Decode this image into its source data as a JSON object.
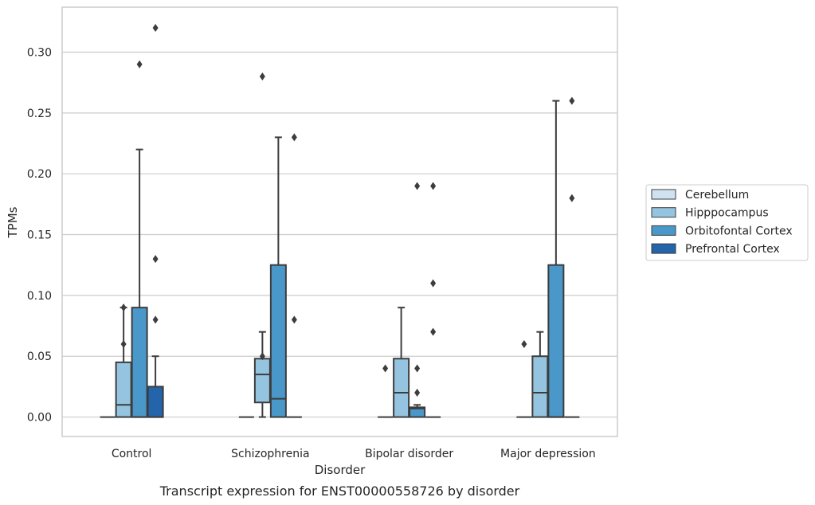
{
  "caption": "Transcript expression for ENST00000558726 by disorder",
  "chart_data": {
    "type": "box",
    "title": "",
    "xlabel": "Disorder",
    "ylabel": "TPMs",
    "ylim": [
      -0.016,
      0.337
    ],
    "yticks": [
      0.0,
      0.05,
      0.1,
      0.15,
      0.2,
      0.25,
      0.3
    ],
    "ytick_labels": [
      "0.00",
      "0.05",
      "0.10",
      "0.15",
      "0.20",
      "0.25",
      "0.30"
    ],
    "grid": "horizontal",
    "legend_position": "right",
    "categories": [
      "Control",
      "Schizophrenia",
      "Bipolar disorder",
      "Major depression"
    ],
    "series": [
      {
        "name": "Cerebellum",
        "color": "#d0e1f2",
        "boxes": [
          {
            "min": 0,
            "q1": 0,
            "median": 0,
            "q3": 0,
            "max": 0,
            "outliers": []
          },
          {
            "min": 0,
            "q1": 0,
            "median": 0,
            "q3": 0,
            "max": 0,
            "outliers": []
          },
          {
            "min": 0,
            "q1": 0,
            "median": 0,
            "q3": 0,
            "max": 0,
            "outliers": [
              0.04
            ]
          },
          {
            "min": 0,
            "q1": 0,
            "median": 0,
            "q3": 0,
            "max": 0,
            "outliers": [
              0.06
            ]
          }
        ]
      },
      {
        "name": "Hipppocampus",
        "color": "#94c4df",
        "boxes": [
          {
            "min": 0,
            "q1": 0,
            "median": 0.01,
            "q3": 0.045,
            "max": 0.09,
            "outliers": [
              0.06,
              0.09
            ]
          },
          {
            "min": 0,
            "q1": 0.012,
            "median": 0.035,
            "q3": 0.048,
            "max": 0.07,
            "outliers": [
              0.05,
              0.28
            ]
          },
          {
            "min": 0,
            "q1": 0,
            "median": 0.02,
            "q3": 0.048,
            "max": 0.09,
            "outliers": []
          },
          {
            "min": 0,
            "q1": 0,
            "median": 0.02,
            "q3": 0.05,
            "max": 0.07,
            "outliers": []
          }
        ]
      },
      {
        "name": "Orbitofontal Cortex",
        "color": "#4a98c9",
        "boxes": [
          {
            "min": 0,
            "q1": 0,
            "median": 0,
            "q3": 0.09,
            "max": 0.22,
            "outliers": [
              0.29
            ]
          },
          {
            "min": 0,
            "q1": 0,
            "median": 0.015,
            "q3": 0.125,
            "max": 0.23,
            "outliers": []
          },
          {
            "min": 0,
            "q1": 0,
            "median": 0.007,
            "q3": 0.008,
            "max": 0.01,
            "outliers": [
              0.02,
              0.04,
              0.19
            ]
          },
          {
            "min": 0,
            "q1": 0,
            "median": 0,
            "q3": 0.125,
            "max": 0.26,
            "outliers": []
          }
        ]
      },
      {
        "name": "Prefrontal Cortex",
        "color": "#2364aa",
        "boxes": [
          {
            "min": 0,
            "q1": 0,
            "median": 0,
            "q3": 0.025,
            "max": 0.05,
            "outliers": [
              0.08,
              0.13,
              0.32
            ]
          },
          {
            "min": 0,
            "q1": 0,
            "median": 0,
            "q3": 0,
            "max": 0,
            "outliers": [
              0.08,
              0.23
            ]
          },
          {
            "min": 0,
            "q1": 0,
            "median": 0,
            "q3": 0,
            "max": 0,
            "outliers": [
              0.07,
              0.11,
              0.19
            ]
          },
          {
            "min": 0,
            "q1": 0,
            "median": 0,
            "q3": 0,
            "max": 0,
            "outliers": [
              0.18,
              0.26
            ]
          }
        ]
      }
    ]
  }
}
